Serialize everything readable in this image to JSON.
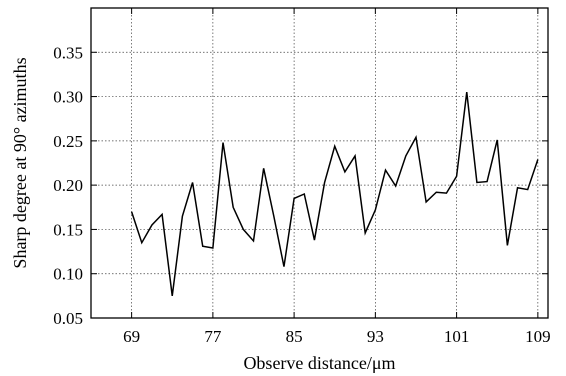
{
  "chart_data": {
    "type": "line",
    "title": "",
    "xlabel": "Observe distance/μm",
    "ylabel": "Sharp degree at 90° azimuths",
    "xlim": [
      65,
      110
    ],
    "ylim": [
      0.05,
      0.4
    ],
    "x_ticks": [
      69,
      77,
      85,
      93,
      101,
      109
    ],
    "x_tick_labels": [
      "69",
      "77",
      "85",
      "93",
      "101",
      "109"
    ],
    "y_ticks": [
      0.05,
      0.1,
      0.15,
      0.2,
      0.25,
      0.3,
      0.35
    ],
    "y_tick_labels": [
      "0.05",
      "0.10",
      "0.15",
      "0.20",
      "0.25",
      "0.30",
      "0.35"
    ],
    "grid": true,
    "line_color": "#000000",
    "grid_color": "#444444",
    "series": [
      {
        "x": [
          69,
          70,
          71,
          72,
          73,
          74,
          75,
          76,
          77,
          78,
          79,
          80,
          81,
          82,
          83,
          84,
          85,
          86,
          87,
          88,
          89,
          90,
          91,
          92,
          93,
          94,
          95,
          96,
          97,
          98,
          99,
          100,
          101,
          102,
          103,
          104,
          105,
          106,
          107,
          108,
          109
        ],
        "values": [
          0.17,
          0.135,
          0.155,
          0.167,
          0.075,
          0.165,
          0.203,
          0.131,
          0.129,
          0.248,
          0.175,
          0.15,
          0.137,
          0.219,
          0.165,
          0.108,
          0.185,
          0.19,
          0.138,
          0.203,
          0.244,
          0.215,
          0.233,
          0.146,
          0.172,
          0.217,
          0.199,
          0.233,
          0.254,
          0.181,
          0.192,
          0.191,
          0.21,
          0.305,
          0.203,
          0.204,
          0.251,
          0.132,
          0.197,
          0.195,
          0.229
        ]
      }
    ]
  }
}
